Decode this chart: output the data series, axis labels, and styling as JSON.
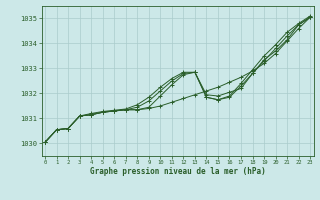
{
  "xlabel": "Graphe pression niveau de la mer (hPa)",
  "bg_color": "#cce8e8",
  "grid_color": "#aacccc",
  "line_color": "#2a5e2a",
  "ylim": [
    1029.5,
    1035.5
  ],
  "xlim": [
    -0.3,
    23.3
  ],
  "yticks": [
    1030,
    1031,
    1032,
    1033,
    1034,
    1035
  ],
  "xticks": [
    0,
    1,
    2,
    3,
    4,
    5,
    6,
    7,
    8,
    9,
    10,
    11,
    12,
    13,
    14,
    15,
    16,
    17,
    18,
    19,
    20,
    21,
    22,
    23
  ],
  "line1": [
    1030.05,
    1030.55,
    1030.6,
    1031.1,
    1031.15,
    1031.25,
    1031.3,
    1031.35,
    1031.35,
    1031.4,
    1031.5,
    1031.65,
    1031.8,
    1031.95,
    1032.1,
    1032.25,
    1032.45,
    1032.65,
    1032.9,
    1033.2,
    1033.6,
    1034.1,
    1034.6,
    1035.05
  ],
  "line2": [
    1030.05,
    1030.55,
    1030.6,
    1031.1,
    1031.15,
    1031.25,
    1031.3,
    1031.35,
    1031.35,
    1031.45,
    1031.9,
    1032.35,
    1032.75,
    1032.85,
    1031.95,
    1031.9,
    1032.05,
    1032.2,
    1032.8,
    1033.35,
    1033.7,
    1034.15,
    1034.75,
    1035.05
  ],
  "line3": [
    1030.05,
    1030.55,
    1030.6,
    1031.1,
    1031.15,
    1031.25,
    1031.3,
    1031.35,
    1031.45,
    1031.7,
    1032.1,
    1032.5,
    1032.8,
    1032.85,
    1031.85,
    1031.75,
    1031.85,
    1032.3,
    1032.8,
    1033.3,
    1033.8,
    1034.3,
    1034.75,
    1035.05
  ],
  "line4": [
    1030.05,
    1030.55,
    1030.6,
    1031.1,
    1031.2,
    1031.28,
    1031.33,
    1031.38,
    1031.55,
    1031.85,
    1032.25,
    1032.6,
    1032.85,
    1032.85,
    1031.85,
    1031.75,
    1031.9,
    1032.4,
    1032.95,
    1033.5,
    1033.95,
    1034.45,
    1034.8,
    1035.1
  ]
}
